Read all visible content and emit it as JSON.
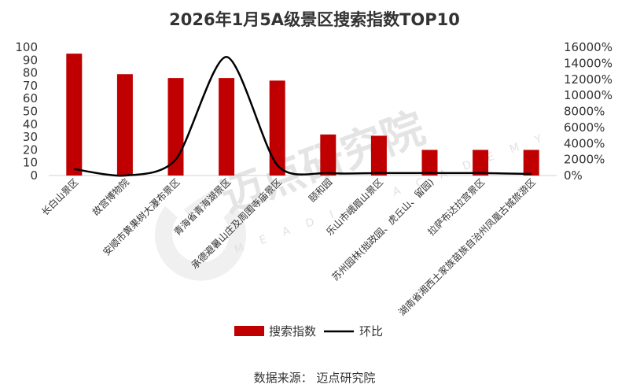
{
  "chart_data": {
    "type": "bar",
    "title": "2026年1月5A级景区搜索指数TOP10",
    "categories": [
      "长白山景区",
      "故宫博物院",
      "安顺市黄果树大瀑布景区",
      "青海省青海湖景区",
      "承德避暑山庄及周围寺庙景区",
      "颐和园",
      "乐山市峨眉山景区",
      "苏州园林(拙政园、虎丘山、留园)",
      "拉萨布达拉宫景区",
      "湖南省湘西土家族苗族自治州凤凰古城旅游区"
    ],
    "series": [
      {
        "name": "搜索指数",
        "type": "bar",
        "axis": "left",
        "color": "#c00000",
        "values": [
          95,
          79,
          76,
          76,
          74,
          32,
          31,
          20,
          20,
          20
        ]
      },
      {
        "name": "环比",
        "type": "line",
        "axis": "right",
        "color": "#000000",
        "unit": "%",
        "values": [
          800,
          0,
          2000,
          14800,
          1300,
          300,
          300,
          300,
          300,
          200
        ]
      }
    ],
    "y_left": {
      "min": 0,
      "max": 100,
      "ticks": [
        "0",
        "10",
        "20",
        "30",
        "40",
        "50",
        "60",
        "70",
        "80",
        "90",
        "100"
      ]
    },
    "y_right": {
      "min": 0,
      "max": 16000,
      "ticks": [
        "0%",
        "2000%",
        "4000%",
        "6000%",
        "8000%",
        "10000%",
        "12000%",
        "14000%",
        "16000%"
      ]
    },
    "legend": {
      "position": "bottom",
      "items": [
        "搜索指数",
        "环比"
      ]
    },
    "grid": false
  },
  "source_text": "数据来源：  迈点研究院",
  "watermark": {
    "main": "迈点研究院",
    "sub": "MEADIN ACADEMY"
  }
}
